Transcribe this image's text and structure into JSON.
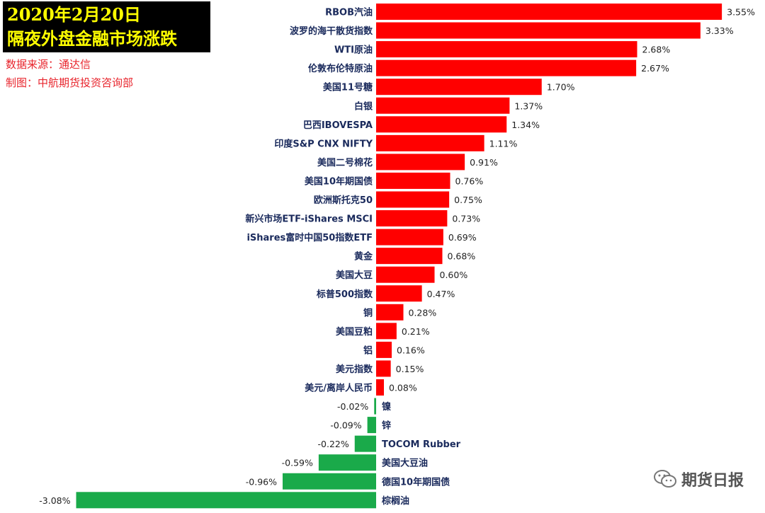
{
  "header": {
    "title_line1": "2020年2月20日",
    "title_line2": "隔夜外盘金融市场涨跌",
    "source": "数据来源：通达信",
    "producer": "制图：中航期货投资咨询部"
  },
  "watermark": {
    "text": "期货日报",
    "icon": "wechat-icon"
  },
  "colors": {
    "positive": "#ff0000",
    "negative": "#1aaa4a",
    "title_bg": "#000000",
    "title_fg": "#ffff00"
  },
  "chart_data": {
    "type": "bar",
    "orientation": "horizontal",
    "categories": [
      "RBOB汽油",
      "波罗的海干散货指数",
      "WTI原油",
      "伦敦布伦特原油",
      "美国11号糖",
      "白银",
      "巴西IBOVESPA",
      "印度S&P CNX NIFTY",
      "美国二号棉花",
      "美国10年期国债",
      "欧洲斯托克50",
      "新兴市场ETF-iShares MSCI",
      "iShares富时中国50指数ETF",
      "黄金",
      "美国大豆",
      "标普500指数",
      "铜",
      "美国豆粕",
      "铝",
      "美元指数",
      "美元/离岸人民币",
      "镍",
      "锌",
      "TOCOM Rubber",
      "美国大豆油",
      "德国10年期国债",
      "棕榈油"
    ],
    "values": [
      3.55,
      3.33,
      2.68,
      2.67,
      1.7,
      1.37,
      1.34,
      1.11,
      0.91,
      0.76,
      0.75,
      0.73,
      0.69,
      0.68,
      0.6,
      0.47,
      0.28,
      0.21,
      0.16,
      0.15,
      0.08,
      -0.02,
      -0.09,
      -0.22,
      -0.59,
      -0.96,
      -3.08
    ],
    "labels": [
      "3.55%",
      "3.33%",
      "2.68%",
      "2.67%",
      "1.70%",
      "1.37%",
      "1.34%",
      "1.11%",
      "0.91%",
      "0.76%",
      "0.75%",
      "0.73%",
      "0.69%",
      "0.68%",
      "0.60%",
      "0.47%",
      "0.28%",
      "0.21%",
      "0.16%",
      "0.15%",
      "0.08%",
      "-0.02%",
      "-0.09%",
      "-0.22%",
      "-0.59%",
      "-0.96%",
      "-3.08%"
    ],
    "unit": "%"
  }
}
